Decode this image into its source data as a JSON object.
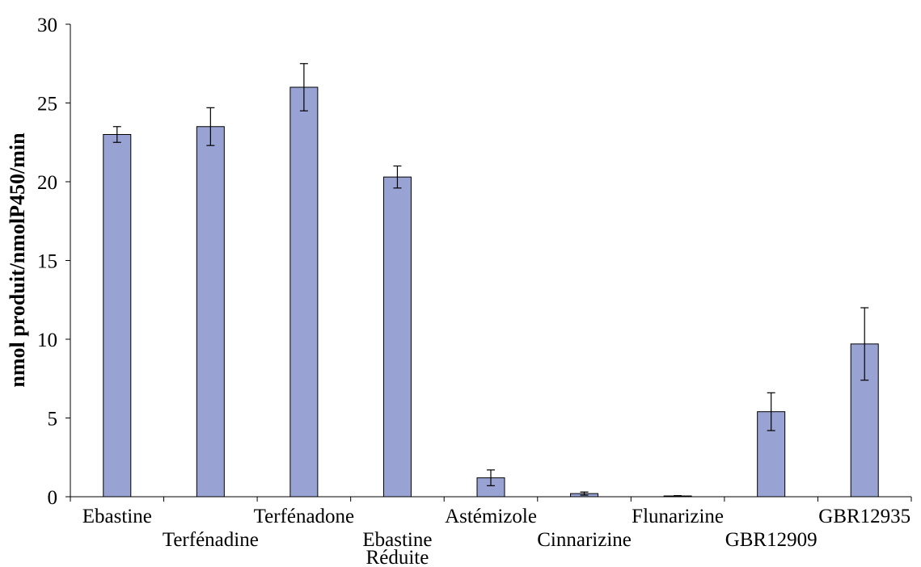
{
  "chart_data": {
    "type": "bar",
    "title": "",
    "xlabel": "",
    "ylabel": "nmol produit/nmolP450/min",
    "ylim": [
      0,
      30
    ],
    "yticks": [
      0,
      5,
      10,
      15,
      20,
      25,
      30
    ],
    "grid": false,
    "categories": [
      [
        "Ebastine"
      ],
      [
        "Terfénadine"
      ],
      [
        "Terfénadone"
      ],
      [
        "Ebastine",
        "Réduite"
      ],
      [
        "Astémizole"
      ],
      [
        "Cinnarizine"
      ],
      [
        "Flunarizine"
      ],
      [
        "GBR12909"
      ],
      [
        "GBR12935"
      ]
    ],
    "values": [
      23.0,
      23.5,
      26.0,
      20.3,
      1.2,
      0.2,
      0.05,
      5.4,
      9.7
    ],
    "errors": [
      0.5,
      1.2,
      1.5,
      0.7,
      0.5,
      0.1,
      0.02,
      1.2,
      2.3
    ],
    "colors": {
      "bar_fill": "#99a3d3",
      "bar_stroke": "#000000"
    }
  }
}
